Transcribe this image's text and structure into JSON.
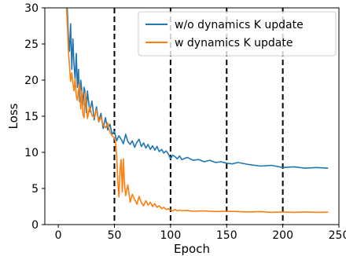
{
  "chart_data": {
    "type": "line",
    "title": "",
    "xlabel": "Epoch",
    "ylabel": "Loss",
    "xlim": [
      -12,
      250
    ],
    "ylim": [
      0,
      30
    ],
    "x_ticks": [
      0,
      50,
      100,
      150,
      200,
      250
    ],
    "x_tick_labels": [
      "0",
      "50",
      "100",
      "150",
      "200",
      "250"
    ],
    "y_ticks": [
      0,
      5,
      10,
      15,
      20,
      25,
      30
    ],
    "y_tick_labels": [
      "0",
      "5",
      "10",
      "15",
      "20",
      "25",
      "30"
    ],
    "legend_position": "top-right",
    "grid": false,
    "vertical_lines": [
      50,
      100,
      150,
      200
    ],
    "series": [
      {
        "name": "w/o dynamics K update",
        "color": "#1f77b4",
        "x": [
          7,
          8,
          9,
          10,
          11,
          12,
          13,
          14,
          15,
          16,
          17,
          18,
          19,
          20,
          21,
          22,
          23,
          24,
          25,
          26,
          28,
          30,
          32,
          34,
          36,
          38,
          40,
          42,
          44,
          46,
          48,
          50,
          52,
          54,
          56,
          58,
          60,
          62,
          64,
          66,
          68,
          70,
          72,
          74,
          76,
          78,
          80,
          82,
          84,
          86,
          88,
          90,
          92,
          94,
          96,
          98,
          100,
          102,
          104,
          106,
          108,
          110,
          115,
          120,
          125,
          130,
          135,
          140,
          145,
          150,
          155,
          160,
          170,
          180,
          190,
          200,
          210,
          220,
          230,
          240
        ],
        "values": [
          33,
          30,
          26,
          24,
          27.8,
          21.5,
          25.7,
          22.2,
          20,
          23.7,
          19,
          21.5,
          17,
          20,
          18.5,
          16.5,
          19,
          18.2,
          15.5,
          18.5,
          15.6,
          17.1,
          14.5,
          16.3,
          14.3,
          15.4,
          13.3,
          14.8,
          13.1,
          13.9,
          12.5,
          12.9,
          11.6,
          12.3,
          11.8,
          11.2,
          12.5,
          11.5,
          11.1,
          11.6,
          10.7,
          11.4,
          11.8,
          10.8,
          11.3,
          10.6,
          11.1,
          10.4,
          10.9,
          10.3,
          10.8,
          10.1,
          10.4,
          9.9,
          10.2,
          9.8,
          9.1,
          9.6,
          9.4,
          9.1,
          9.5,
          9.0,
          9.3,
          8.9,
          9.0,
          8.7,
          8.9,
          8.6,
          8.7,
          8.5,
          8.4,
          8.6,
          8.3,
          8.1,
          8.2,
          7.9,
          8.0,
          7.8,
          7.9,
          7.8
        ]
      },
      {
        "name": "w dynamics K update",
        "color": "#ff7f0e",
        "x": [
          7,
          8,
          9,
          10,
          11,
          12,
          13,
          14,
          15,
          16,
          17,
          18,
          19,
          20,
          21,
          22,
          23,
          24,
          25,
          26,
          28,
          30,
          32,
          34,
          36,
          38,
          40,
          42,
          44,
          46,
          48,
          50,
          51,
          52,
          53,
          54,
          55,
          56,
          57,
          58,
          59,
          60,
          62,
          64,
          66,
          68,
          70,
          72,
          74,
          76,
          78,
          80,
          82,
          84,
          86,
          88,
          90,
          92,
          94,
          96,
          98,
          100,
          102,
          104,
          106,
          108,
          110,
          115,
          120,
          130,
          140,
          150,
          160,
          170,
          180,
          190,
          200,
          210,
          220,
          230,
          240
        ],
        "values": [
          31,
          28,
          24,
          22,
          19.8,
          21,
          19.6,
          18.5,
          20.2,
          17.8,
          17.2,
          18.6,
          19.5,
          16,
          18.5,
          15.2,
          14.8,
          18.3,
          16.8,
          14.7,
          16.3,
          15.1,
          14.8,
          15.9,
          14.2,
          14.9,
          13.8,
          13.4,
          14.1,
          12.8,
          12.3,
          12.0,
          11.4,
          9.5,
          6.0,
          3.8,
          7.5,
          9.0,
          4.5,
          9.1,
          5.5,
          4.0,
          5.5,
          3.1,
          4.2,
          3.5,
          2.8,
          3.9,
          3.0,
          2.6,
          3.3,
          2.7,
          3.1,
          2.5,
          2.9,
          2.4,
          2.6,
          2.2,
          2.4,
          2.1,
          2.2,
          2.0,
          1.9,
          2.1,
          1.9,
          2.0,
          1.9,
          1.95,
          1.85,
          1.9,
          1.8,
          1.85,
          1.8,
          1.75,
          1.8,
          1.7,
          1.75,
          1.7,
          1.75,
          1.7,
          1.72
        ]
      }
    ]
  }
}
